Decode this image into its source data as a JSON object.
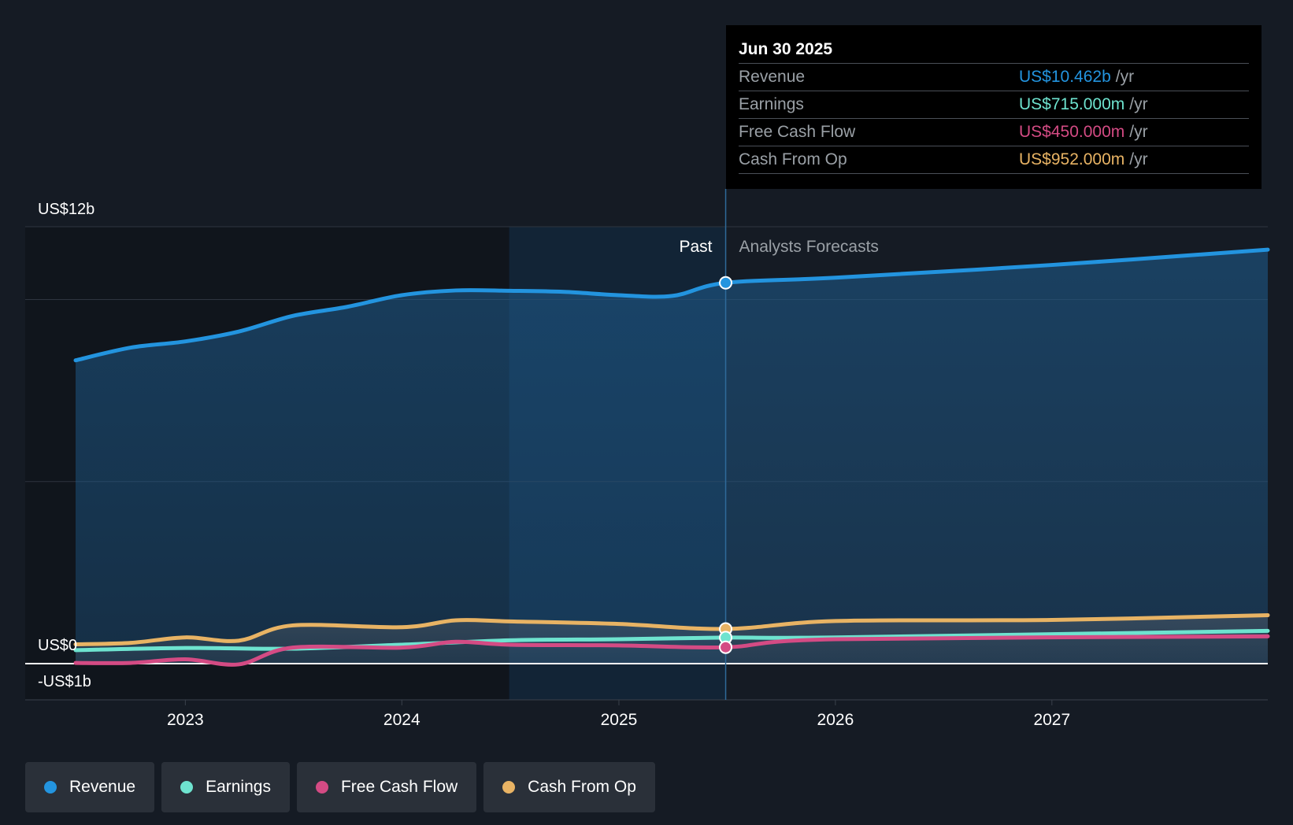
{
  "colors": {
    "background": "#151b24",
    "revenue": "#2394df",
    "earnings": "#6ee3cf",
    "free_cash_flow": "#d44b84",
    "cash_from_op": "#e8b364"
  },
  "tooltip": {
    "date": "Jun 30 2025",
    "rows": [
      {
        "label": "Revenue",
        "value": "US$10.462b",
        "unit": "/yr",
        "color": "#2394df"
      },
      {
        "label": "Earnings",
        "value": "US$715.000m",
        "unit": "/yr",
        "color": "#6ee3cf"
      },
      {
        "label": "Free Cash Flow",
        "value": "US$450.000m",
        "unit": "/yr",
        "color": "#d44b84"
      },
      {
        "label": "Cash From Op",
        "value": "US$952.000m",
        "unit": "/yr",
        "color": "#e8b364"
      }
    ]
  },
  "legend": [
    {
      "label": "Revenue",
      "color": "#2394df"
    },
    {
      "label": "Earnings",
      "color": "#6ee3cf"
    },
    {
      "label": "Free Cash Flow",
      "color": "#d44b84"
    },
    {
      "label": "Cash From Op",
      "color": "#e8b364"
    }
  ],
  "chart_data": {
    "type": "line",
    "y_axis_labels": [
      "US$12b",
      "US$0",
      "-US$1b"
    ],
    "ylim": [
      -1,
      12
    ],
    "xlim": [
      "2022-06-30",
      "2027-12-31"
    ],
    "x_ticks": [
      {
        "label": "2023",
        "date": "2023-01-01"
      },
      {
        "label": "2024",
        "date": "2024-01-01"
      },
      {
        "label": "2025",
        "date": "2025-01-01"
      },
      {
        "label": "2026",
        "date": "2026-01-01"
      },
      {
        "label": "2027",
        "date": "2027-01-01"
      }
    ],
    "grid": true,
    "past_label": "Past",
    "forecast_label": "Analysts Forecasts",
    "forecast_start": "2025-06-30",
    "highlight_start": "2024-06-30",
    "series": [
      {
        "name": "Revenue",
        "color": "#2394df",
        "points": [
          [
            "2022-06-30",
            8.33
          ],
          [
            "2022-10-01",
            8.68
          ],
          [
            "2023-01-01",
            8.85
          ],
          [
            "2023-04-01",
            9.12
          ],
          [
            "2023-07-01",
            9.55
          ],
          [
            "2023-10-01",
            9.8
          ],
          [
            "2024-01-01",
            10.12
          ],
          [
            "2024-04-01",
            10.25
          ],
          [
            "2024-07-01",
            10.24
          ],
          [
            "2024-10-01",
            10.21
          ],
          [
            "2025-01-01",
            10.12
          ],
          [
            "2025-04-01",
            10.1
          ],
          [
            "2025-06-30",
            10.46
          ],
          [
            "2026-01-01",
            10.6
          ],
          [
            "2027-01-01",
            10.95
          ],
          [
            "2027-12-31",
            11.37
          ]
        ]
      },
      {
        "name": "Earnings",
        "color": "#6ee3cf",
        "points": [
          [
            "2022-06-30",
            0.37
          ],
          [
            "2023-01-01",
            0.43
          ],
          [
            "2023-06-30",
            0.41
          ],
          [
            "2024-01-01",
            0.52
          ],
          [
            "2024-06-30",
            0.64
          ],
          [
            "2025-01-01",
            0.67
          ],
          [
            "2025-06-30",
            0.715
          ],
          [
            "2026-01-01",
            0.72
          ],
          [
            "2027-12-31",
            0.9
          ]
        ]
      },
      {
        "name": "Free Cash Flow",
        "color": "#d44b84",
        "points": [
          [
            "2022-06-30",
            0.02
          ],
          [
            "2022-10-01",
            0.02
          ],
          [
            "2023-01-01",
            0.12
          ],
          [
            "2023-04-01",
            -0.02
          ],
          [
            "2023-07-01",
            0.44
          ],
          [
            "2024-01-01",
            0.44
          ],
          [
            "2024-04-01",
            0.6
          ],
          [
            "2024-07-01",
            0.52
          ],
          [
            "2025-01-01",
            0.5
          ],
          [
            "2025-06-30",
            0.45
          ],
          [
            "2026-01-01",
            0.67
          ],
          [
            "2027-12-31",
            0.75
          ]
        ]
      },
      {
        "name": "Cash From Op",
        "color": "#e8b364",
        "points": [
          [
            "2022-06-30",
            0.53
          ],
          [
            "2022-10-01",
            0.57
          ],
          [
            "2023-01-01",
            0.72
          ],
          [
            "2023-04-01",
            0.63
          ],
          [
            "2023-07-01",
            1.05
          ],
          [
            "2024-01-01",
            1.0
          ],
          [
            "2024-04-01",
            1.19
          ],
          [
            "2024-07-01",
            1.16
          ],
          [
            "2025-01-01",
            1.09
          ],
          [
            "2025-06-30",
            0.952
          ],
          [
            "2026-01-01",
            1.17
          ],
          [
            "2027-01-01",
            1.2
          ],
          [
            "2027-12-31",
            1.33
          ]
        ]
      }
    ]
  }
}
